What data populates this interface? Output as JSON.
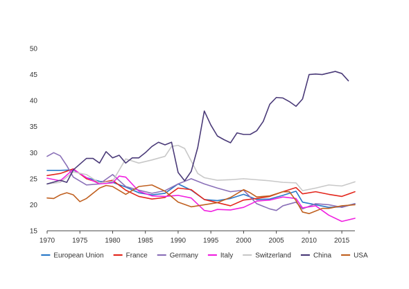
{
  "chart_data": {
    "type": "line",
    "title": "",
    "xlabel": "",
    "ylabel": "",
    "xlim": [
      1970,
      2017
    ],
    "ylim": [
      15,
      50
    ],
    "grid": false,
    "legend_position": "bottom",
    "x_ticks": [
      "1970",
      "1975",
      "1980",
      "1985",
      "1990",
      "1995",
      "2000",
      "2005",
      "2010",
      "2015"
    ],
    "y_ticks": [
      "15",
      "20",
      "25",
      "30",
      "35",
      "40",
      "45",
      "50"
    ],
    "series": [
      {
        "name": "European Union",
        "color": "#2878c8",
        "points": [
          [
            1970,
            26.6
          ],
          [
            1972,
            26.6
          ],
          [
            1974,
            26.7
          ],
          [
            1976,
            25.2
          ],
          [
            1978,
            24.5
          ],
          [
            1980,
            24.3
          ],
          [
            1982,
            23.4
          ],
          [
            1984,
            22.3
          ],
          [
            1986,
            21.9
          ],
          [
            1988,
            22.2
          ],
          [
            1990,
            24.0
          ],
          [
            1992,
            22.8
          ],
          [
            1994,
            21.0
          ],
          [
            1996,
            20.8
          ],
          [
            1998,
            21.2
          ],
          [
            2000,
            22.0
          ],
          [
            2002,
            21.0
          ],
          [
            2004,
            21.1
          ],
          [
            2006,
            21.8
          ],
          [
            2008,
            22.6
          ],
          [
            2009,
            20.5
          ],
          [
            2011,
            20.0
          ],
          [
            2013,
            19.5
          ],
          [
            2015,
            19.6
          ],
          [
            2017,
            20.2
          ]
        ]
      },
      {
        "name": "France",
        "color": "#e3261c",
        "points": [
          [
            1970,
            25.6
          ],
          [
            1972,
            26.0
          ],
          [
            1974,
            26.9
          ],
          [
            1976,
            25.0
          ],
          [
            1978,
            24.2
          ],
          [
            1980,
            24.7
          ],
          [
            1982,
            22.8
          ],
          [
            1984,
            21.6
          ],
          [
            1986,
            21.1
          ],
          [
            1988,
            21.4
          ],
          [
            1990,
            23.2
          ],
          [
            1992,
            22.9
          ],
          [
            1994,
            21.0
          ],
          [
            1996,
            20.4
          ],
          [
            1998,
            19.8
          ],
          [
            2000,
            20.9
          ],
          [
            2002,
            21.2
          ],
          [
            2004,
            21.6
          ],
          [
            2006,
            22.5
          ],
          [
            2008,
            23.3
          ],
          [
            2009,
            22.1
          ],
          [
            2011,
            22.5
          ],
          [
            2013,
            22.0
          ],
          [
            2015,
            21.6
          ],
          [
            2017,
            22.5
          ]
        ]
      },
      {
        "name": "Germany",
        "color": "#8a70b8",
        "points": [
          [
            1970,
            29.3
          ],
          [
            1971,
            30.0
          ],
          [
            1972,
            29.4
          ],
          [
            1973,
            27.5
          ],
          [
            1974,
            25.3
          ],
          [
            1976,
            23.8
          ],
          [
            1978,
            24.0
          ],
          [
            1980,
            25.8
          ],
          [
            1982,
            23.5
          ],
          [
            1984,
            22.8
          ],
          [
            1986,
            22.2
          ],
          [
            1988,
            22.7
          ],
          [
            1990,
            24.0
          ],
          [
            1992,
            25.0
          ],
          [
            1994,
            24.0
          ],
          [
            1996,
            23.2
          ],
          [
            1998,
            22.5
          ],
          [
            2000,
            22.8
          ],
          [
            2002,
            20.2
          ],
          [
            2004,
            19.2
          ],
          [
            2005,
            18.9
          ],
          [
            2006,
            19.8
          ],
          [
            2008,
            20.5
          ],
          [
            2009,
            19.2
          ],
          [
            2011,
            20.2
          ],
          [
            2013,
            20.0
          ],
          [
            2015,
            19.5
          ],
          [
            2017,
            20.2
          ]
        ]
      },
      {
        "name": "Italy",
        "color": "#f020e0",
        "points": [
          [
            1970,
            25.1
          ],
          [
            1972,
            24.6
          ],
          [
            1974,
            26.8
          ],
          [
            1976,
            25.2
          ],
          [
            1978,
            24.0
          ],
          [
            1980,
            24.2
          ],
          [
            1981,
            25.5
          ],
          [
            1982,
            25.3
          ],
          [
            1984,
            22.6
          ],
          [
            1986,
            21.7
          ],
          [
            1988,
            21.6
          ],
          [
            1990,
            21.8
          ],
          [
            1992,
            21.3
          ],
          [
            1994,
            18.9
          ],
          [
            1995,
            18.7
          ],
          [
            1996,
            19.1
          ],
          [
            1998,
            19.0
          ],
          [
            2000,
            19.5
          ],
          [
            2002,
            20.7
          ],
          [
            2004,
            20.9
          ],
          [
            2006,
            21.5
          ],
          [
            2008,
            21.2
          ],
          [
            2009,
            19.4
          ],
          [
            2011,
            19.8
          ],
          [
            2013,
            18.0
          ],
          [
            2015,
            16.8
          ],
          [
            2017,
            17.4
          ]
        ]
      },
      {
        "name": "Switzerland",
        "color": "#c8c8c8",
        "points": [
          [
            1970,
            24.0
          ],
          [
            1972,
            24.3
          ],
          [
            1974,
            26.3
          ],
          [
            1976,
            25.8
          ],
          [
            1978,
            24.2
          ],
          [
            1980,
            24.5
          ],
          [
            1982,
            28.8
          ],
          [
            1984,
            28.0
          ],
          [
            1986,
            28.6
          ],
          [
            1988,
            29.3
          ],
          [
            1989,
            31.2
          ],
          [
            1990,
            31.4
          ],
          [
            1991,
            30.8
          ],
          [
            1993,
            26.0
          ],
          [
            1994,
            25.2
          ],
          [
            1996,
            24.7
          ],
          [
            1998,
            24.8
          ],
          [
            2000,
            25.0
          ],
          [
            2002,
            24.8
          ],
          [
            2004,
            24.6
          ],
          [
            2006,
            24.3
          ],
          [
            2008,
            24.2
          ],
          [
            2009,
            22.7
          ],
          [
            2011,
            23.2
          ],
          [
            2013,
            23.8
          ],
          [
            2015,
            23.6
          ],
          [
            2017,
            24.4
          ]
        ]
      },
      {
        "name": "China",
        "color": "#4a3a78",
        "points": [
          [
            1970,
            24.0
          ],
          [
            1972,
            24.7
          ],
          [
            1973,
            24.3
          ],
          [
            1974,
            26.7
          ],
          [
            1976,
            28.9
          ],
          [
            1977,
            28.9
          ],
          [
            1978,
            28.0
          ],
          [
            1979,
            30.2
          ],
          [
            1980,
            29.0
          ],
          [
            1981,
            29.5
          ],
          [
            1982,
            28.0
          ],
          [
            1983,
            29.0
          ],
          [
            1984,
            29.0
          ],
          [
            1985,
            30.0
          ],
          [
            1986,
            31.2
          ],
          [
            1987,
            32.0
          ],
          [
            1988,
            31.5
          ],
          [
            1989,
            32.0
          ],
          [
            1990,
            26.2
          ],
          [
            1991,
            24.6
          ],
          [
            1992,
            26.4
          ],
          [
            1993,
            31.0
          ],
          [
            1994,
            38.0
          ],
          [
            1995,
            35.3
          ],
          [
            1996,
            33.2
          ],
          [
            1997,
            32.5
          ],
          [
            1998,
            31.9
          ],
          [
            1999,
            33.8
          ],
          [
            2000,
            33.5
          ],
          [
            2001,
            33.5
          ],
          [
            2002,
            34.2
          ],
          [
            2003,
            36.0
          ],
          [
            2004,
            39.3
          ],
          [
            2005,
            40.6
          ],
          [
            2006,
            40.5
          ],
          [
            2007,
            39.8
          ],
          [
            2008,
            38.9
          ],
          [
            2009,
            40.3
          ],
          [
            2010,
            45.0
          ],
          [
            2011,
            45.1
          ],
          [
            2012,
            45.0
          ],
          [
            2013,
            45.3
          ],
          [
            2014,
            45.6
          ],
          [
            2015,
            45.2
          ],
          [
            2016,
            43.8
          ]
        ]
      },
      {
        "name": "USA",
        "color": "#c06020",
        "points": [
          [
            1970,
            21.3
          ],
          [
            1971,
            21.2
          ],
          [
            1972,
            21.9
          ],
          [
            1973,
            22.3
          ],
          [
            1974,
            21.9
          ],
          [
            1975,
            20.6
          ],
          [
            1976,
            21.2
          ],
          [
            1978,
            23.2
          ],
          [
            1979,
            23.7
          ],
          [
            1980,
            23.5
          ],
          [
            1982,
            22.0
          ],
          [
            1984,
            23.5
          ],
          [
            1986,
            23.8
          ],
          [
            1988,
            22.6
          ],
          [
            1990,
            20.5
          ],
          [
            1992,
            19.6
          ],
          [
            1994,
            20.0
          ],
          [
            1996,
            20.4
          ],
          [
            1998,
            21.4
          ],
          [
            2000,
            22.9
          ],
          [
            2001,
            22.3
          ],
          [
            2002,
            21.5
          ],
          [
            2004,
            21.7
          ],
          [
            2006,
            22.5
          ],
          [
            2007,
            22.5
          ],
          [
            2008,
            20.8
          ],
          [
            2009,
            18.6
          ],
          [
            2010,
            18.3
          ],
          [
            2011,
            18.8
          ],
          [
            2012,
            19.3
          ],
          [
            2013,
            19.3
          ],
          [
            2015,
            19.8
          ],
          [
            2017,
            20.0
          ]
        ]
      }
    ]
  }
}
